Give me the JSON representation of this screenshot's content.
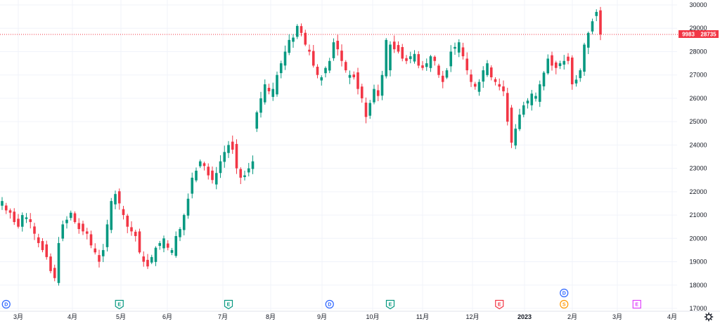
{
  "chart_data": {
    "type": "candlestick",
    "x_tick_labels": [
      "3月",
      "4月",
      "5月",
      "6月",
      "7月",
      "8月",
      "9月",
      "10月",
      "11月",
      "12月",
      "2023",
      "2月",
      "3月",
      "4月"
    ],
    "y_ticks": [
      17000,
      18000,
      19000,
      20000,
      21000,
      22000,
      23000,
      24000,
      25000,
      26000,
      27000,
      28000,
      29000,
      30000
    ],
    "ylim": [
      16850,
      30100
    ],
    "current_price": 28735,
    "price_tag_left": "9983",
    "price_tag_right": "28735",
    "close_series": [
      21600,
      21200,
      21100,
      20700,
      20500,
      21000,
      20900,
      20700,
      20200,
      19800,
      19500,
      19200,
      18600,
      18300,
      19800,
      20600,
      20800,
      21100,
      20700,
      20400,
      20300,
      20200,
      19700,
      19400,
      19000,
      19500,
      20600,
      21600,
      21900,
      21500,
      21000,
      20500,
      20300,
      20100,
      19400,
      19000,
      18800,
      19200,
      19600,
      19800,
      20000,
      19600,
      19500,
      20100,
      20400,
      21000,
      21700,
      22600,
      22900,
      23300,
      23100,
      22700,
      22500,
      22800,
      23300,
      23700,
      24000,
      23800,
      23000,
      22600,
      22700,
      23000,
      23300,
      25400,
      26000,
      26600,
      26300,
      26400,
      27000,
      27500,
      28000,
      28500,
      28600,
      29100,
      28800,
      28300,
      28000,
      27400,
      27000,
      26900,
      27300,
      27600,
      28400,
      28100,
      27600,
      27200,
      27000,
      26900,
      26400,
      26000,
      25200,
      25800,
      26400,
      26100,
      27000,
      28500,
      28300,
      28100,
      28000,
      27700,
      27600,
      27800,
      27900,
      27400,
      27300,
      27500,
      27800,
      27600,
      27000,
      26700,
      27200,
      28000,
      28200,
      28400,
      27800,
      27200,
      26700,
      26500,
      26700,
      27200,
      27500,
      26900,
      26700,
      26500,
      26300,
      25000,
      24100,
      24700,
      25300,
      25700,
      25900,
      26200,
      26100,
      26600,
      27100,
      27700,
      27400,
      27300,
      27500,
      27600,
      27600,
      26600,
      26800,
      27200,
      28300,
      28800,
      29300,
      29700,
      28735
    ],
    "event_markers": [
      {
        "letter": "D",
        "color": "#2962ff",
        "row": "bottom",
        "date_index": 1
      },
      {
        "letter": "E",
        "color": "#089981",
        "row": "bottom",
        "date_index": 29
      },
      {
        "letter": "E",
        "color": "#089981",
        "row": "bottom",
        "date_index": 56
      },
      {
        "letter": "D",
        "color": "#2962ff",
        "row": "bottom",
        "date_index": 81
      },
      {
        "letter": "E",
        "color": "#089981",
        "row": "bottom",
        "date_index": 96
      },
      {
        "letter": "E",
        "color": "#f23645",
        "row": "bottom",
        "date_index": 123
      },
      {
        "letter": "S",
        "color": "#ff9800",
        "row": "bottom",
        "date_index": 139
      },
      {
        "letter": "D",
        "color": "#2962ff",
        "row": "top",
        "date_index": 139
      },
      {
        "letter": "E",
        "color": "#e040fb",
        "row": "bottom",
        "date_index": 157
      }
    ],
    "up_color": "#089981",
    "down_color": "#f23645",
    "grid": true,
    "settings_icon": "gear-icon"
  }
}
